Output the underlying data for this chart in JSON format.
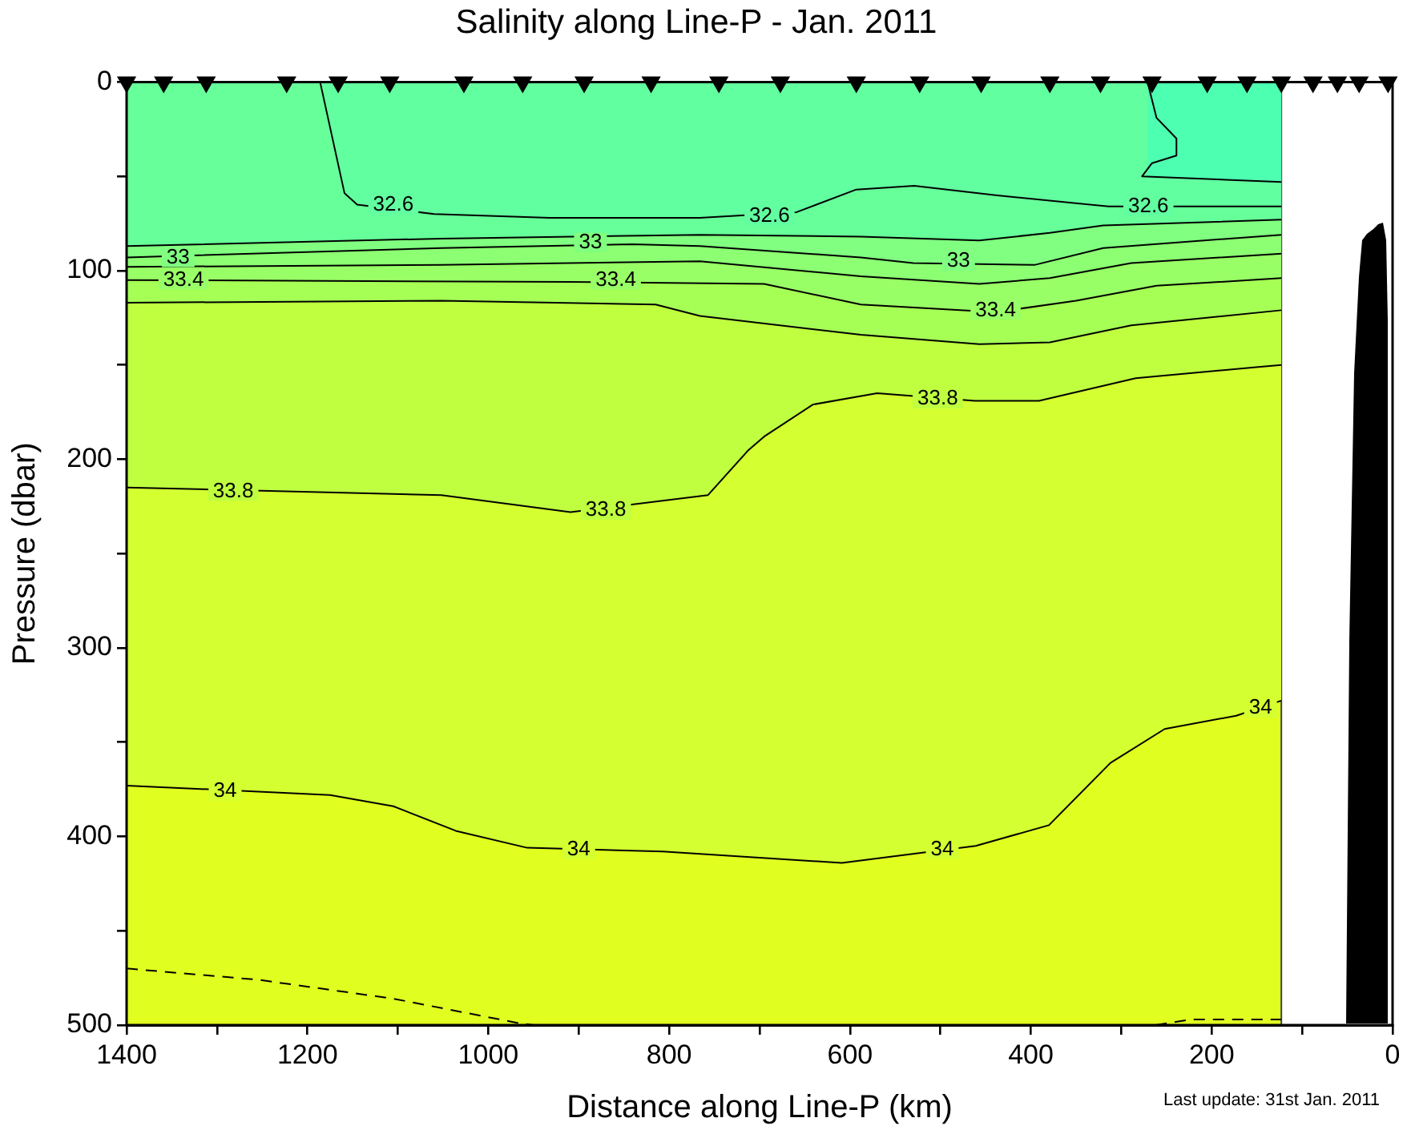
{
  "chart_data": {
    "type": "area",
    "title": "Salinity along Line-P - Jan. 2011",
    "xlabel": "Distance along Line-P (km)",
    "ylabel": "Pressure (dbar)",
    "xlim": [
      1400,
      0
    ],
    "ylim": [
      500,
      0
    ],
    "xticks": [
      1400,
      {
        "value": 1300,
        "label": null
      },
      1200,
      {
        "value": 1100,
        "label": null
      },
      1000,
      {
        "value": 900,
        "label": null
      },
      800,
      {
        "value": 700,
        "label": null
      },
      600,
      {
        "value": 500,
        "label": null
      },
      400,
      {
        "value": 300,
        "label": null
      },
      200,
      {
        "value": 100,
        "label": null
      },
      0
    ],
    "yticks": [
      0,
      {
        "value": 50,
        "label": null
      },
      100,
      {
        "value": 150,
        "label": null
      },
      200,
      {
        "value": 250,
        "label": null
      },
      300,
      {
        "value": 350,
        "label": null
      },
      400,
      {
        "value": 450,
        "label": null
      },
      500
    ],
    "grid": false,
    "legend": false,
    "bands": [
      {
        "axis": "x",
        "from": 1400,
        "to": 123,
        "color": "#e0ff20"
      }
    ],
    "series": [
      {
        "type": "line",
        "color": "#000000",
        "line_style": "dashed",
        "x": [
          1400,
          1254,
          1105,
          966,
          950
        ],
        "values": [
          470,
          476,
          486,
          499,
          500
        ]
      },
      {
        "type": "line",
        "color": "#000000",
        "line_style": "dashed",
        "x": [
          262,
          223,
          143,
          123
        ],
        "values": [
          500,
          497,
          497,
          497
        ]
      },
      {
        "color": "#d4ff30",
        "x": [
          1400,
          1175,
          1105,
          1036,
          957,
          807,
          609,
          461,
          380,
          312,
          252,
          173,
          123
        ],
        "values": [
          373,
          378,
          384,
          397,
          406,
          408,
          414,
          405,
          394,
          361,
          343,
          336,
          328
        ]
      },
      {
        "color": "#bfff40",
        "x": [
          1400,
          1052,
          909,
          757,
          712,
          695,
          641,
          570,
          462,
          391,
          284,
          146,
          123
        ],
        "values": [
          215,
          219,
          228,
          219,
          195,
          188,
          171,
          165,
          169,
          169,
          157,
          151,
          150
        ]
      },
      {
        "color": "#a6ff55",
        "x": [
          1400,
          1052,
          815,
          766,
          588,
          457,
          379,
          289,
          123
        ],
        "values": [
          117,
          116,
          118,
          124,
          134,
          139,
          138,
          129,
          121
        ]
      },
      {
        "color": "#99ff66",
        "x": [
          1400,
          910,
          695,
          588,
          439,
          350,
          261,
          123
        ],
        "values": [
          105,
          106,
          107,
          118,
          122,
          116,
          108,
          104
        ]
      },
      {
        "color": "#8cff73",
        "x": [
          1400,
          1052,
          766,
          588,
          457,
          379,
          289,
          123
        ],
        "values": [
          98,
          97,
          95,
          103,
          107,
          104,
          96,
          91
        ]
      },
      {
        "color": "#80ff80",
        "x": [
          1400,
          1052,
          840,
          766,
          588,
          530,
          396,
          320,
          123
        ],
        "values": [
          93,
          88,
          86,
          87,
          93,
          96,
          97,
          88,
          81
        ]
      },
      {
        "color": "#66ff99",
        "x": [
          1400,
          1052,
          766,
          588,
          457,
          379,
          320,
          123
        ],
        "values": [
          87,
          83,
          81,
          82,
          84,
          80,
          76,
          73
        ]
      },
      {
        "color": "#62ffa0",
        "x": [
          1186,
          1159,
          1145,
          1060,
          932,
          766,
          659,
          593,
          529,
          439,
          314,
          123
        ],
        "values": [
          0,
          59,
          65,
          70,
          72,
          72,
          69,
          57,
          55,
          60,
          66,
          66
        ]
      },
      {
        "color": "#4dffb0",
        "x": [
          271,
          261,
          239,
          239,
          266,
          277,
          123
        ],
        "values": [
          0,
          19,
          30,
          39,
          43,
          50,
          53
        ]
      },
      {
        "type": "scatter",
        "color": "#000000",
        "marker": "triangle",
        "x": [
          1400,
          1359,
          1312,
          1223,
          1166,
          1109,
          1027,
          962,
          894,
          820,
          745,
          677,
          593,
          523,
          455,
          379,
          323,
          266,
          205,
          161,
          123,
          88,
          61,
          37,
          5
        ],
        "values": [
          0,
          0,
          0,
          0,
          0,
          0,
          0,
          0,
          0,
          0,
          0,
          0,
          0,
          0,
          0,
          0,
          0,
          0,
          0,
          0,
          0,
          0,
          0,
          0,
          0
        ]
      }
    ],
    "annotations": [
      {
        "text": "32.6",
        "x": 1105,
        "y": 65
      },
      {
        "text": "32.6",
        "x": 689,
        "y": 71
      },
      {
        "text": "32.6",
        "x": 270,
        "y": 66
      },
      {
        "text": "33",
        "x": 1343,
        "y": 93
      },
      {
        "text": "33",
        "x": 887,
        "y": 85
      },
      {
        "text": "33",
        "x": 480,
        "y": 95
      },
      {
        "text": "33.4",
        "x": 1337,
        "y": 105
      },
      {
        "text": "33.4",
        "x": 859,
        "y": 105
      },
      {
        "text": "33.4",
        "x": 439,
        "y": 121
      },
      {
        "text": "33.8",
        "x": 1282,
        "y": 217
      },
      {
        "text": "33.8",
        "x": 870,
        "y": 227
      },
      {
        "text": "33.8",
        "x": 503,
        "y": 168
      },
      {
        "text": "34",
        "x": 1291,
        "y": 376
      },
      {
        "text": "34",
        "x": 900,
        "y": 407
      },
      {
        "text": "34",
        "x": 498,
        "y": 407
      },
      {
        "text": "34",
        "x": 146,
        "y": 332
      },
      "Last update: 31st Jan. 2011"
    ]
  }
}
